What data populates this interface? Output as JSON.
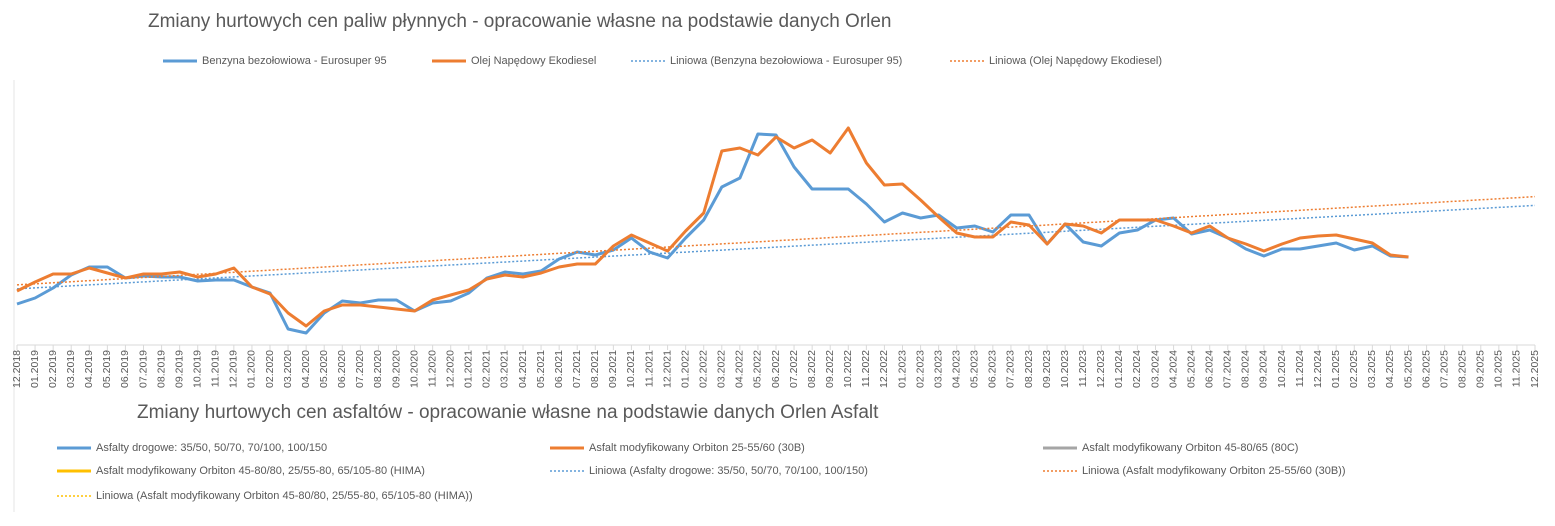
{
  "chart_data": [
    {
      "type": "line",
      "title": "Zmiany hurtowych cen paliw płynnych - opracowanie własne na podstawie danych Orlen",
      "categories": [
        "12.2018",
        "01.2019",
        "02.2019",
        "03.2019",
        "04.2019",
        "05.2019",
        "06.2019",
        "07.2019",
        "08.2019",
        "09.2019",
        "10.2019",
        "11.2019",
        "12.2019",
        "01.2020",
        "02.2020",
        "03.2020",
        "04.2020",
        "05.2020",
        "06.2020",
        "07.2020",
        "08.2020",
        "09.2020",
        "10.2020",
        "11.2020",
        "12.2020",
        "01.2021",
        "02.2021",
        "03.2021",
        "04.2021",
        "05.2021",
        "06.2021",
        "07.2021",
        "08.2021",
        "09.2021",
        "10.2021",
        "11.2021",
        "12.2021",
        "01.2022",
        "02.2022",
        "03.2022",
        "04.2022",
        "05.2022",
        "06.2022",
        "07.2022",
        "08.2022",
        "09.2022",
        "10.2022",
        "11.2022",
        "12.2022",
        "01.2023",
        "02.2023",
        "03.2023",
        "04.2023",
        "05.2023",
        "06.2023",
        "07.2023",
        "08.2023",
        "09.2023",
        "10.2023",
        "11.2023",
        "12.2023",
        "01.2024",
        "02.2024",
        "03.2024",
        "04.2024",
        "05.2024",
        "06.2024",
        "07.2024",
        "08.2024",
        "09.2024",
        "10.2024",
        "11.2024",
        "12.2024",
        "01.2025",
        "02.2025",
        "03.2025",
        "04.2025",
        "05.2025",
        "06.2025",
        "07.2025",
        "08.2025",
        "09.2025",
        "10.2025",
        "11.2025",
        "12.2025"
      ],
      "ylim": [
        0,
        280
      ],
      "series": [
        {
          "name": "Benzyna bezołowiowa - Eurosuper 95",
          "color": "#5b9bd5",
          "trendline": {
            "name": "Liniowa (Benzyna bezołowiowa - Eurosuper 95)",
            "color": "#5b9bd5"
          },
          "values": [
            41,
            47,
            57,
            70,
            78,
            78,
            67,
            69,
            68,
            68,
            64,
            65,
            65,
            58,
            52,
            16,
            12,
            32,
            44,
            42,
            45,
            45,
            34,
            42,
            44,
            52,
            67,
            73,
            71,
            74,
            86,
            93,
            90,
            95,
            107,
            93,
            87,
            107,
            125,
            158,
            167,
            211,
            210,
            178,
            156,
            156,
            156,
            141,
            123,
            132,
            127,
            130,
            117,
            119,
            113,
            130,
            130,
            101,
            121,
            103,
            99,
            112,
            115,
            125,
            127,
            111,
            115,
            107,
            96,
            89,
            96,
            96,
            99,
            102,
            95,
            99,
            89,
            88,
            null,
            null,
            null,
            null,
            null,
            null,
            null
          ]
        },
        {
          "name": "Olej Napędowy Ekodiesel",
          "color": "#ed7d31",
          "trendline": {
            "name": "Liniowa (Olej Napędowy Ekodiesel)",
            "color": "#ed7d31"
          },
          "values": [
            54,
            63,
            71,
            71,
            77,
            72,
            67,
            71,
            71,
            73,
            68,
            71,
            77,
            58,
            51,
            32,
            19,
            34,
            40,
            40,
            38,
            36,
            34,
            45,
            50,
            55,
            66,
            70,
            68,
            72,
            78,
            81,
            81,
            99,
            110,
            102,
            94,
            114,
            132,
            194,
            197,
            190,
            208,
            197,
            205,
            192,
            217,
            182,
            160,
            161,
            145,
            128,
            112,
            108,
            108,
            123,
            120,
            101,
            121,
            119,
            112,
            125,
            125,
            125,
            119,
            112,
            119,
            107,
            101,
            94,
            101,
            107,
            109,
            110,
            106,
            102,
            90,
            88,
            null,
            null,
            null,
            null,
            null,
            null,
            null
          ]
        }
      ]
    },
    {
      "type": "line",
      "title": "Zmiany hurtowych cen asfaltów - opracowanie własne na podstawie danych Orlen Asfalt",
      "series": [
        {
          "name": "Asfalty drogowe: 35/50, 50/70, 70/100, 100/150",
          "color": "#5b9bd5",
          "trendline": {
            "name": "Liniowa (Asfalty drogowe: 35/50, 50/70, 70/100, 100/150)",
            "color": "#5b9bd5"
          }
        },
        {
          "name": "Asfalt modyfikowany Orbiton 25-55/60 (30B)",
          "color": "#ed7d31",
          "trendline": {
            "name": "Liniowa (Asfalt modyfikowany Orbiton 25-55/60 (30B))",
            "color": "#ed7d31"
          }
        },
        {
          "name": "Asfalt modyfikowany Orbiton 45-80/65 (80C)",
          "color": "#a5a5a5"
        },
        {
          "name": "Asfalt modyfikowany Orbiton 45-80/80, 25/55-80, 65/105-80 (HIMA)",
          "color": "#ffc000",
          "trendline": {
            "name": "Liniowa (Asfalt modyfikowany Orbiton 45-80/80, 25/55-80, 65/105-80 (HIMA))",
            "color": "#ffc000"
          }
        }
      ]
    }
  ]
}
